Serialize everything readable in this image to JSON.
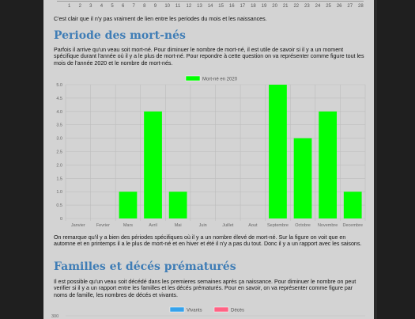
{
  "top_axis": {
    "ticks": [
      "1",
      "2",
      "3",
      "4",
      "5",
      "6",
      "7",
      "8",
      "9",
      "10",
      "11",
      "12",
      "13",
      "14",
      "15",
      "16",
      "17",
      "18",
      "19",
      "20",
      "21",
      "22",
      "23",
      "24",
      "25",
      "26",
      "27",
      "28"
    ]
  },
  "intro_text": "C'est clair que il n'y pas vraiment de lien entre les periodes du mois et les naissances.",
  "section1": {
    "title": "Periode des mort-nés",
    "paragraph": "Parfois il arrive qu'un veau soit mort-né. Pour diminuer le nombre de mort-né, il est utile de savoir si il y a un moment spécifique durant l'année où il y a le plus de mort-né. Pour repondre à cette question on va représenter comme figure tout les mois de l'année 2020 et le nombre de mort-nés.",
    "after_chart": "On remarque qu'il y a bien des périodes spécifiques où il y a un nombre élevé de mort-né. Sur la figure on voit que en automne et en printemps il a le plus de mort-né et en hiver et été il n'y a pas du tout. Donc il y a un rapport avec les saisons."
  },
  "chart_data": [
    {
      "type": "bar",
      "categories": [
        "Janvier",
        "Fevrier",
        "Mars",
        "Avril",
        "Mai",
        "Juin",
        "Juillet",
        "Aout",
        "Septembre",
        "Octobre",
        "Novembre",
        "Decembre"
      ],
      "series": [
        {
          "name": "Mort-né en 2020",
          "values": [
            0,
            0,
            1,
            4,
            1,
            0,
            0,
            0,
            5,
            3,
            4,
            1
          ],
          "color": "#00ff00"
        }
      ],
      "ylim": [
        0,
        5
      ],
      "yticks": [
        "0",
        "0.5",
        "1.0",
        "1.5",
        "2.0",
        "2.5",
        "3.0",
        "3.5",
        "4.0",
        "4.5",
        "5.0"
      ],
      "legend": "top-center",
      "grid": true
    },
    {
      "type": "line",
      "series": [
        {
          "name": "Vivants",
          "color": "#36a2eb"
        },
        {
          "name": "Décès",
          "color": "#ff6384"
        }
      ],
      "yticks_visible": [
        "300"
      ],
      "legend": "top-center"
    }
  ],
  "section2": {
    "title": "Familles et décés prématurés",
    "paragraph": "Il est possible qu'un veau soit décédé dans les premieres semaines aprés ça naissance. Pour diminuer le nombre on peut verifier si il y a un rapport entre les familles et les décés prématurés. Pour en savoir, on va représenter comme figure par noms de famille, les nombres de décés et vivants."
  }
}
